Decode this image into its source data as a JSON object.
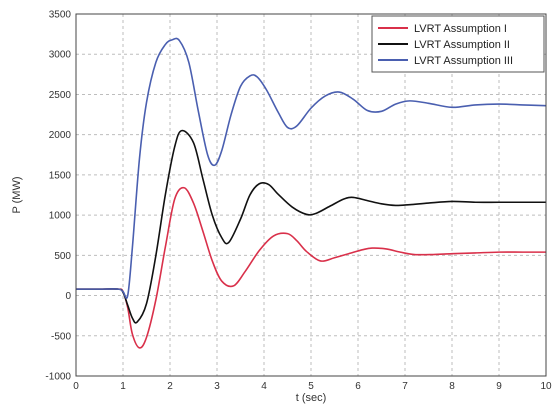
{
  "chart_data": {
    "type": "line",
    "xlabel": "t (sec)",
    "ylabel": "P (MW)",
    "xlim": [
      0,
      10
    ],
    "ylim": [
      -1000,
      3500
    ],
    "x_ticks": [
      0,
      1,
      2,
      3,
      4,
      5,
      6,
      7,
      8,
      9,
      10
    ],
    "y_ticks": [
      -1000,
      -500,
      0,
      500,
      1000,
      1500,
      2000,
      2500,
      3000,
      3500
    ],
    "grid": true,
    "legend_position": "top-right",
    "series": [
      {
        "name": "LVRT Assumption I",
        "color": "#d9304a",
        "x": [
          0,
          0.5,
          0.9,
          1.0,
          1.1,
          1.2,
          1.35,
          1.5,
          1.7,
          1.9,
          2.1,
          2.3,
          2.5,
          2.7,
          2.9,
          3.1,
          3.35,
          3.6,
          3.9,
          4.2,
          4.5,
          4.7,
          4.9,
          5.2,
          5.5,
          5.8,
          6.1,
          6.3,
          6.6,
          6.9,
          7.2,
          7.6,
          8.0,
          8.5,
          9.0,
          9.5,
          10.0
        ],
        "y": [
          80,
          80,
          80,
          50,
          -150,
          -480,
          -650,
          -520,
          -50,
          600,
          1200,
          1340,
          1150,
          800,
          430,
          180,
          120,
          300,
          560,
          740,
          770,
          680,
          550,
          430,
          470,
          520,
          570,
          590,
          580,
          540,
          510,
          510,
          520,
          530,
          540,
          540,
          540
        ]
      },
      {
        "name": "LVRT Assumption II",
        "color": "#111111",
        "x": [
          0,
          0.5,
          0.9,
          1.0,
          1.1,
          1.2,
          1.3,
          1.5,
          1.7,
          1.9,
          2.1,
          2.25,
          2.5,
          2.7,
          2.9,
          3.1,
          3.25,
          3.5,
          3.7,
          3.9,
          4.1,
          4.3,
          4.6,
          4.9,
          5.1,
          5.4,
          5.7,
          5.9,
          6.2,
          6.5,
          6.8,
          7.1,
          7.5,
          8.0,
          8.5,
          9.0,
          9.5,
          10.0
        ],
        "y": [
          80,
          80,
          80,
          40,
          -120,
          -280,
          -330,
          -100,
          500,
          1250,
          1850,
          2050,
          1900,
          1450,
          1000,
          720,
          660,
          950,
          1250,
          1390,
          1380,
          1260,
          1100,
          1010,
          1020,
          1110,
          1200,
          1220,
          1180,
          1140,
          1120,
          1130,
          1150,
          1170,
          1160,
          1160,
          1160,
          1160
        ]
      },
      {
        "name": "LVRT Assumption III",
        "color": "#4a5fb0",
        "x": [
          0,
          0.5,
          0.9,
          1.0,
          1.1,
          1.2,
          1.35,
          1.5,
          1.7,
          1.9,
          2.05,
          2.2,
          2.4,
          2.6,
          2.8,
          2.95,
          3.1,
          3.3,
          3.5,
          3.7,
          3.85,
          4.05,
          4.3,
          4.5,
          4.7,
          5.0,
          5.3,
          5.6,
          5.9,
          6.2,
          6.5,
          6.8,
          7.1,
          7.5,
          8.0,
          8.5,
          9.0,
          9.5,
          10.0
        ],
        "y": [
          80,
          80,
          80,
          50,
          0,
          600,
          1700,
          2400,
          2900,
          3120,
          3180,
          3170,
          2900,
          2300,
          1750,
          1620,
          1800,
          2250,
          2600,
          2730,
          2720,
          2560,
          2280,
          2090,
          2110,
          2330,
          2480,
          2530,
          2440,
          2300,
          2290,
          2380,
          2420,
          2390,
          2340,
          2370,
          2380,
          2370,
          2360
        ]
      }
    ]
  }
}
